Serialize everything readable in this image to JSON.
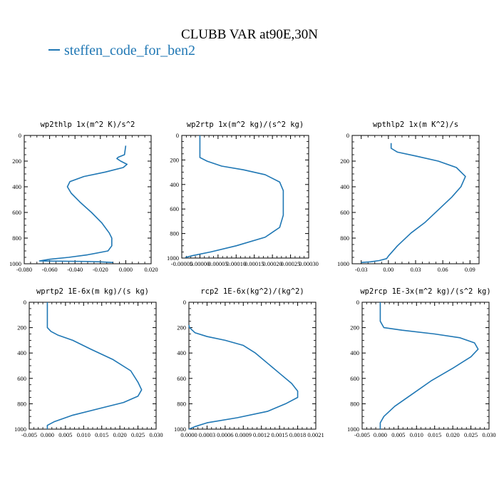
{
  "figure": {
    "title": "CLUBB VAR at90E,30N",
    "legend_label": "steffen_code_for_ben2",
    "series_color": "#1f77b4"
  },
  "chart_data": [
    {
      "type": "line",
      "title": "wp2thlp  1x(m^2 K)/s^2",
      "xlim": [
        -0.08,
        0.02
      ],
      "ylim": [
        1000,
        0
      ],
      "xticks": [
        "-0.080",
        "-0.060",
        "-0.040",
        "-0.020",
        "0.000",
        "0.020"
      ],
      "xtick_values": [
        -0.08,
        -0.06,
        -0.04,
        -0.02,
        0.0,
        0.02
      ],
      "yticks": [
        "0",
        "200",
        "400",
        "600",
        "800",
        "1000"
      ],
      "ytick_values": [
        0,
        200,
        400,
        600,
        800,
        1000
      ],
      "series": [
        {
          "x": [
            0.0,
            -0.001,
            -0.006,
            -0.007,
            -0.004,
            0.001,
            -0.002,
            -0.016,
            -0.033,
            -0.044,
            -0.046,
            -0.043,
            -0.036,
            -0.027,
            -0.019,
            -0.013,
            -0.011,
            -0.011,
            -0.014,
            -0.03,
            -0.045,
            -0.06,
            -0.068,
            -0.05,
            -0.03,
            -0.02,
            -0.01
          ],
          "y": [
            80,
            150,
            170,
            180,
            200,
            225,
            250,
            285,
            320,
            360,
            400,
            450,
            520,
            600,
            680,
            760,
            800,
            860,
            900,
            930,
            950,
            965,
            978,
            980,
            982,
            985,
            990
          ]
        }
      ]
    },
    {
      "type": "line",
      "title": "wp2rtp  1x(m^2 kg)/(s^2 kg)",
      "xlim": [
        -5e-05,
        0.0003
      ],
      "ylim": [
        1000,
        0
      ],
      "xticks": [
        "-0.00005",
        "0.00000",
        "0.00005",
        "0.00010",
        "0.00015",
        "0.00020",
        "0.00025",
        "0.00030"
      ],
      "xtick_values": [
        -5e-05,
        0.0,
        5e-05,
        0.0001,
        0.00015,
        0.0002,
        0.00025,
        0.0003
      ],
      "yticks": [
        "0",
        "200",
        "400",
        "600",
        "800",
        "1000"
      ],
      "ytick_values": [
        0,
        200,
        400,
        600,
        800,
        1000
      ],
      "series": [
        {
          "x": [
            0.0,
            0.0,
            0.0,
            0.0,
            2e-05,
            6e-05,
            0.00012,
            0.00018,
            0.00022,
            0.00023,
            0.00023,
            0.00023,
            0.00022,
            0.00018,
            0.0001,
            3e-05,
            -2e-05,
            -4e-05
          ],
          "y": [
            0,
            80,
            150,
            180,
            210,
            250,
            280,
            320,
            380,
            450,
            550,
            650,
            750,
            830,
            900,
            950,
            980,
            995
          ]
        }
      ]
    },
    {
      "type": "line",
      "title": "wpthlp2  1x(m K^2)/s",
      "xlim": [
        -0.04,
        0.1
      ],
      "ylim": [
        1000,
        0
      ],
      "xticks": [
        "-0.03",
        "0.00",
        "0.03",
        "0.06",
        "0.09"
      ],
      "xtick_values": [
        -0.03,
        0.0,
        0.03,
        0.06,
        0.09
      ],
      "yticks": [
        "0",
        "200",
        "400",
        "600",
        "800",
        "1000"
      ],
      "ytick_values": [
        0,
        200,
        400,
        600,
        800,
        1000
      ],
      "series": [
        {
          "x": [
            0.003,
            0.003,
            0.01,
            0.03,
            0.055,
            0.075,
            0.085,
            0.08,
            0.07,
            0.055,
            0.04,
            0.025,
            0.01,
            0.0,
            -0.002,
            -0.01,
            -0.02,
            -0.03
          ],
          "y": [
            60,
            100,
            130,
            160,
            200,
            250,
            320,
            400,
            480,
            580,
            680,
            760,
            860,
            940,
            960,
            975,
            985,
            990
          ]
        }
      ]
    },
    {
      "type": "line",
      "title": "wprtp2  1E-6x(m kg)/(s kg)",
      "xlim": [
        -0.005,
        0.03
      ],
      "ylim": [
        1000,
        0
      ],
      "xticks": [
        "-0.005",
        "0.000",
        "0.005",
        "0.010",
        "0.015",
        "0.020",
        "0.025",
        "0.030"
      ],
      "xtick_values": [
        -0.005,
        0.0,
        0.005,
        0.01,
        0.015,
        0.02,
        0.025,
        0.03
      ],
      "yticks": [
        "0",
        "200",
        "400",
        "600",
        "800",
        "1000"
      ],
      "ytick_values": [
        0,
        200,
        400,
        600,
        800,
        1000
      ],
      "series": [
        {
          "x": [
            0.0,
            0.0,
            0.0,
            0.001,
            0.003,
            0.007,
            0.012,
            0.018,
            0.023,
            0.025,
            0.026,
            0.025,
            0.021,
            0.014,
            0.007,
            0.002,
            0.0,
            0.0
          ],
          "y": [
            0,
            100,
            200,
            230,
            260,
            300,
            370,
            450,
            540,
            630,
            690,
            740,
            790,
            840,
            890,
            940,
            970,
            1000
          ]
        }
      ]
    },
    {
      "type": "line",
      "title": "rcp2  1E-6x(kg^2)/(kg^2)",
      "xlim": [
        0.0,
        0.0021
      ],
      "ylim": [
        1000,
        0
      ],
      "xticks": [
        "0.0000",
        "0.0003",
        "0.0006",
        "0.0009",
        "0.0012",
        "0.0015",
        "0.0018",
        "0.0021"
      ],
      "xtick_values": [
        0.0,
        0.0003,
        0.0006,
        0.0009,
        0.0012,
        0.0015,
        0.0018,
        0.0021
      ],
      "yticks": [
        "0",
        "200",
        "400",
        "600",
        "800",
        "1000"
      ],
      "ytick_values": [
        0,
        200,
        400,
        600,
        800,
        1000
      ],
      "series": [
        {
          "x": [
            0.0,
            1e-05,
            0.0001,
            0.0003,
            0.0006,
            0.0009,
            0.0011,
            0.0013,
            0.0015,
            0.0017,
            0.0018,
            0.0018,
            0.0016,
            0.0013,
            0.0008,
            0.0003,
            0.0001,
            0.0
          ],
          "y": [
            180,
            200,
            240,
            270,
            300,
            340,
            400,
            480,
            560,
            640,
            700,
            750,
            800,
            860,
            910,
            950,
            980,
            1000
          ]
        }
      ]
    },
    {
      "type": "line",
      "title": "wp2rcp  1E-3x(m^2 kg)/(s^2 kg)",
      "xlim": [
        -0.005,
        0.03
      ],
      "ylim": [
        1000,
        0
      ],
      "xticks": [
        "-0.005",
        "0.000",
        "0.005",
        "0.010",
        "0.015",
        "0.020",
        "0.025",
        "0.030"
      ],
      "xtick_values": [
        -0.005,
        0.0,
        0.005,
        0.01,
        0.015,
        0.02,
        0.025,
        0.03
      ],
      "yticks": [
        "0",
        "200",
        "400",
        "600",
        "800",
        "1000"
      ],
      "ytick_values": [
        0,
        200,
        400,
        600,
        800,
        1000
      ],
      "series": [
        {
          "x": [
            0.0,
            0.0,
            0.001,
            0.006,
            0.015,
            0.022,
            0.026,
            0.027,
            0.025,
            0.02,
            0.014,
            0.009,
            0.004,
            0.001,
            0.0,
            0.0
          ],
          "y": [
            0,
            150,
            200,
            220,
            250,
            280,
            320,
            370,
            430,
            520,
            620,
            720,
            820,
            900,
            950,
            1000
          ]
        }
      ]
    }
  ]
}
